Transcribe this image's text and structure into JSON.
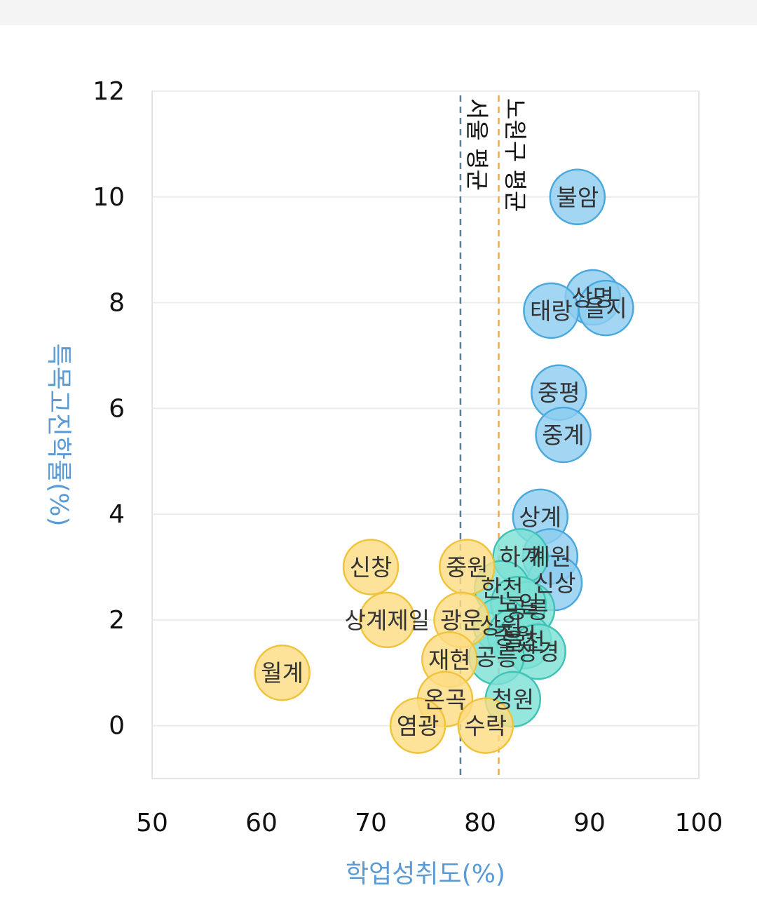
{
  "chart_data": {
    "type": "scatter",
    "xlabel": "학업성취도(%)",
    "ylabel": "특목고진학률(%)",
    "xlim": [
      50,
      100
    ],
    "ylim": [
      -1,
      12
    ],
    "x_ticks": [
      50,
      60,
      70,
      80,
      90,
      100
    ],
    "y_ticks": [
      0,
      2,
      4,
      6,
      8,
      10,
      12
    ],
    "grid": "horizontal",
    "colors": {
      "blue": "#8ecdf0",
      "blue_edge": "#4aa8dd",
      "teal": "#7ee0d4",
      "teal_edge": "#3fc3b4",
      "yellow": "#fddc82",
      "yellow_edge": "#f0c33c",
      "seoul_line": "#5a7d95",
      "nowon_line": "#e8a85a",
      "axis_title": "#5b9bd5"
    },
    "reference_lines": [
      {
        "label": "서울 평균",
        "x": 78.2,
        "color": "seoul_line"
      },
      {
        "label": "노원구 평균",
        "x": 81.7,
        "color": "nowon_line"
      }
    ],
    "points": [
      {
        "label": "불암",
        "x": 88.9,
        "y": 10.0,
        "group": "blue"
      },
      {
        "label": "상명",
        "x": 90.3,
        "y": 8.1,
        "group": "blue"
      },
      {
        "label": "을지",
        "x": 91.5,
        "y": 7.9,
        "group": "blue"
      },
      {
        "label": "태랑",
        "x": 86.5,
        "y": 7.85,
        "group": "blue"
      },
      {
        "label": "중평",
        "x": 87.2,
        "y": 6.3,
        "group": "blue"
      },
      {
        "label": "중계",
        "x": 87.6,
        "y": 5.5,
        "group": "blue"
      },
      {
        "label": "상계",
        "x": 85.5,
        "y": 3.95,
        "group": "blue"
      },
      {
        "label": "계원",
        "x": 86.4,
        "y": 3.2,
        "group": "blue"
      },
      {
        "label": "신상",
        "x": 86.8,
        "y": 2.7,
        "group": "blue"
      },
      {
        "label": "하계",
        "x": 83.7,
        "y": 3.2,
        "group": "teal"
      },
      {
        "label": "한천",
        "x": 82.0,
        "y": 2.6,
        "group": "teal"
      },
      {
        "label": "공릉",
        "x": 84.3,
        "y": 2.2,
        "group": "teal"
      },
      {
        "label": "노일",
        "x": 83.5,
        "y": 2.3,
        "group": "teal"
      },
      {
        "label": "상원",
        "x": 81.9,
        "y": 1.9,
        "group": "teal"
      },
      {
        "label": "중원",
        "x": 83.2,
        "y": 1.7,
        "group": "teal"
      },
      {
        "label": "을천",
        "x": 84.0,
        "y": 1.6,
        "group": "teal"
      },
      {
        "label": "상경",
        "x": 85.3,
        "y": 1.4,
        "group": "teal"
      },
      {
        "label": "공릉",
        "x": 81.5,
        "y": 1.3,
        "group": "teal"
      },
      {
        "label": "청원",
        "x": 83.0,
        "y": 0.5,
        "group": "teal"
      },
      {
        "label": "신창",
        "x": 70.0,
        "y": 3.0,
        "group": "yellow"
      },
      {
        "label": "중원",
        "x": 78.8,
        "y": 3.0,
        "group": "yellow"
      },
      {
        "label": "상계제일",
        "x": 71.5,
        "y": 2.0,
        "group": "yellow"
      },
      {
        "label": "광운",
        "x": 78.3,
        "y": 2.0,
        "group": "yellow"
      },
      {
        "label": "재현",
        "x": 77.2,
        "y": 1.25,
        "group": "yellow"
      },
      {
        "label": "월계",
        "x": 61.9,
        "y": 1.0,
        "group": "yellow"
      },
      {
        "label": "온곡",
        "x": 76.8,
        "y": 0.5,
        "group": "yellow"
      },
      {
        "label": "염광",
        "x": 74.3,
        "y": 0.0,
        "group": "yellow"
      },
      {
        "label": "수락",
        "x": 80.5,
        "y": 0.0,
        "group": "yellow"
      }
    ]
  }
}
